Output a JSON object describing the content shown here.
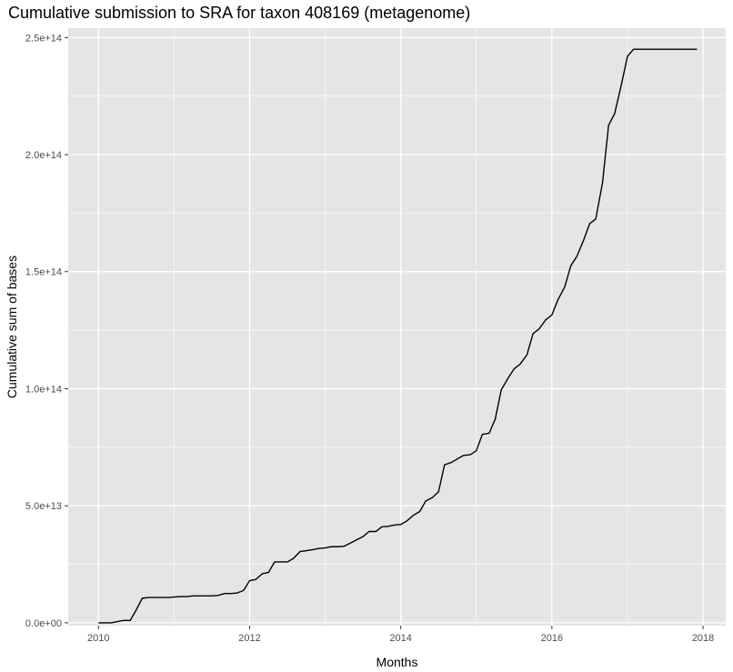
{
  "chart_data": {
    "type": "line",
    "title": "Cumulative submission to SRA for taxon 408169 (metagenome)",
    "xlabel": "Months",
    "ylabel": "Cumulative sum of bases",
    "xlim": [
      2009.6,
      2018.3
    ],
    "ylim": [
      -1200000000000.0,
      254000000000000.0
    ],
    "x_ticks": [
      2010,
      2012,
      2014,
      2016,
      2018
    ],
    "x_tick_labels": [
      "2010",
      "2012",
      "2014",
      "2016",
      "2018"
    ],
    "y_ticks": [
      0,
      50000000000000.0,
      100000000000000.0,
      150000000000000.0,
      200000000000000.0,
      250000000000000.0
    ],
    "y_tick_labels": [
      "0.0e+00",
      "5.0e+13",
      "1.0e+14",
      "1.5e+14",
      "2.0e+14",
      "2.5e+14"
    ],
    "grid": true,
    "panel_color": "#e5e5e5",
    "grid_color": "#ffffff",
    "line_color": "#000000",
    "series": [
      {
        "x": [
          2010.0,
          2010.17,
          2010.25,
          2010.33,
          2010.42,
          2010.5,
          2010.58,
          2010.67,
          2010.75,
          2010.83,
          2010.92,
          2011.0,
          2011.08,
          2011.17,
          2011.25,
          2011.33,
          2011.42,
          2011.5,
          2011.58,
          2011.67,
          2011.75,
          2011.83,
          2011.92,
          2012.0,
          2012.08,
          2012.17,
          2012.25,
          2012.33,
          2012.42,
          2012.5,
          2012.58,
          2012.67,
          2012.75,
          2012.83,
          2012.92,
          2013.0,
          2013.08,
          2013.17,
          2013.25,
          2013.33,
          2013.42,
          2013.5,
          2013.58,
          2013.67,
          2013.75,
          2013.83,
          2013.92,
          2014.0,
          2014.08,
          2014.17,
          2014.25,
          2014.33,
          2014.42,
          2014.5,
          2014.58,
          2014.67,
          2014.75,
          2014.83,
          2014.92,
          2015.0,
          2015.08,
          2015.17,
          2015.25,
          2015.33,
          2015.42,
          2015.5,
          2015.58,
          2015.67,
          2015.75,
          2015.83,
          2015.92,
          2016.0,
          2016.08,
          2016.17,
          2016.25,
          2016.33,
          2016.42,
          2016.5,
          2016.58,
          2016.67,
          2016.75,
          2016.83,
          2016.92,
          2017.0,
          2017.08,
          2017.17,
          2017.25,
          2017.5,
          2017.75,
          2017.92
        ],
        "y": [
          0.0,
          0.0,
          500000000000.0,
          1000000000000.0,
          1000000000000.0,
          5500000000000.0,
          10500000000000.0,
          10800000000000.0,
          10800000000000.0,
          10800000000000.0,
          10800000000000.0,
          11000000000000.0,
          11200000000000.0,
          11200000000000.0,
          11500000000000.0,
          11500000000000.0,
          11500000000000.0,
          11500000000000.0,
          11700000000000.0,
          12500000000000.0,
          12500000000000.0,
          12700000000000.0,
          13800000000000.0,
          18000000000000.0,
          18500000000000.0,
          21000000000000.0,
          21500000000000.0,
          26000000000000.0,
          26000000000000.0,
          26000000000000.0,
          27500000000000.0,
          30500000000000.0,
          30800000000000.0,
          31200000000000.0,
          31800000000000.0,
          32000000000000.0,
          32500000000000.0,
          32500000000000.0,
          32700000000000.0,
          34000000000000.0,
          35500000000000.0,
          36800000000000.0,
          39000000000000.0,
          39000000000000.0,
          41000000000000.0,
          41200000000000.0,
          41800000000000.0,
          42000000000000.0,
          43500000000000.0,
          46000000000000.0,
          47500000000000.0,
          52000000000000.0,
          53500000000000.0,
          56000000000000.0,
          67500000000000.0,
          68500000000000.0,
          70000000000000.0,
          71500000000000.0,
          71800000000000.0,
          73500000000000.0,
          80500000000000.0,
          81000000000000.0,
          87000000000000.0,
          99500000000000.0,
          104500000000000.0,
          108500000000000.0,
          110500000000000.0,
          114500000000000.0,
          123500000000000.0,
          125500000000000.0,
          129500000000000.0,
          131500000000000.0,
          138000000000000.0,
          143500000000000.0,
          152500000000000.0,
          156500000000000.0,
          163500000000000.0,
          170500000000000.0,
          172500000000000.0,
          188000000000000.0,
          212500000000000.0,
          217500000000000.0,
          230000000000000.0,
          242000000000000.0,
          245000000000000.0,
          245000000000000.0,
          245000000000000.0,
          245000000000000.0,
          245000000000000.0,
          245000000000000.0
        ]
      }
    ]
  }
}
